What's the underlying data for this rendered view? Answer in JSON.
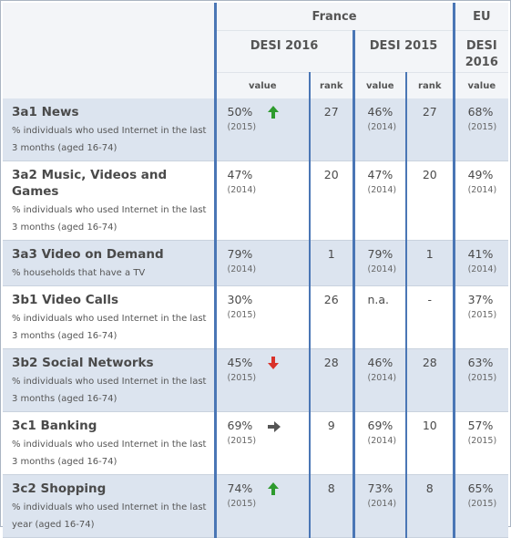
{
  "header": {
    "france": "France",
    "eu": "EU",
    "desi2016": "DESI 2016",
    "desi2015": "DESI 2015",
    "eu_desi_line1": "DESI",
    "eu_desi_line2": "2016",
    "value": "value",
    "rank": "rank"
  },
  "rows": [
    {
      "title": "3a1 News",
      "desc": "% individuals who used Internet in the last 3 months (aged 16-74)",
      "v16": "50%",
      "y16": "(2015)",
      "trend": "up",
      "r16": "27",
      "v15": "46%",
      "y15": "(2014)",
      "r15": "27",
      "eu": "68%",
      "yeu": "(2015)"
    },
    {
      "title": "3a2 Music, Videos and Games",
      "desc": "% individuals who used Internet in the last 3 months (aged 16-74)",
      "v16": "47%",
      "y16": "(2014)",
      "trend": "none",
      "r16": "20",
      "v15": "47%",
      "y15": "(2014)",
      "r15": "20",
      "eu": "49%",
      "yeu": "(2014)"
    },
    {
      "title": "3a3 Video on Demand",
      "desc": "% households that have a TV",
      "v16": "79%",
      "y16": "(2014)",
      "trend": "none",
      "r16": "1",
      "v15": "79%",
      "y15": "(2014)",
      "r15": "1",
      "eu": "41%",
      "yeu": "(2014)"
    },
    {
      "title": "3b1 Video Calls",
      "desc": "% individuals who used Internet in the last 3 months (aged 16-74)",
      "v16": "30%",
      "y16": "(2015)",
      "trend": "none",
      "r16": "26",
      "v15": "n.a.",
      "y15": "",
      "r15": "-",
      "eu": "37%",
      "yeu": "(2015)"
    },
    {
      "title": "3b2 Social Networks",
      "desc": "% individuals who used Internet in the last 3 months (aged 16-74)",
      "v16": "45%",
      "y16": "(2015)",
      "trend": "down",
      "r16": "28",
      "v15": "46%",
      "y15": "(2014)",
      "r15": "28",
      "eu": "63%",
      "yeu": "(2015)"
    },
    {
      "title": "3c1 Banking",
      "desc": "% individuals who used Internet in the last 3 months (aged 16-74)",
      "v16": "69%",
      "y16": "(2015)",
      "trend": "flat",
      "r16": "9",
      "v15": "69%",
      "y15": "(2014)",
      "r15": "10",
      "eu": "57%",
      "yeu": "(2015)"
    },
    {
      "title": "3c2 Shopping",
      "desc": "% individuals who used Internet in the last year (aged 16-74)",
      "v16": "74%",
      "y16": "(2015)",
      "trend": "up",
      "r16": "8",
      "v15": "73%",
      "y15": "(2014)",
      "r15": "8",
      "eu": "65%",
      "yeu": "(2015)"
    }
  ],
  "colors": {
    "up": "#2e9b2e",
    "down": "#d9312a",
    "flat": "#555555",
    "band": "#dce4ef",
    "divider": "#4a76b5"
  }
}
